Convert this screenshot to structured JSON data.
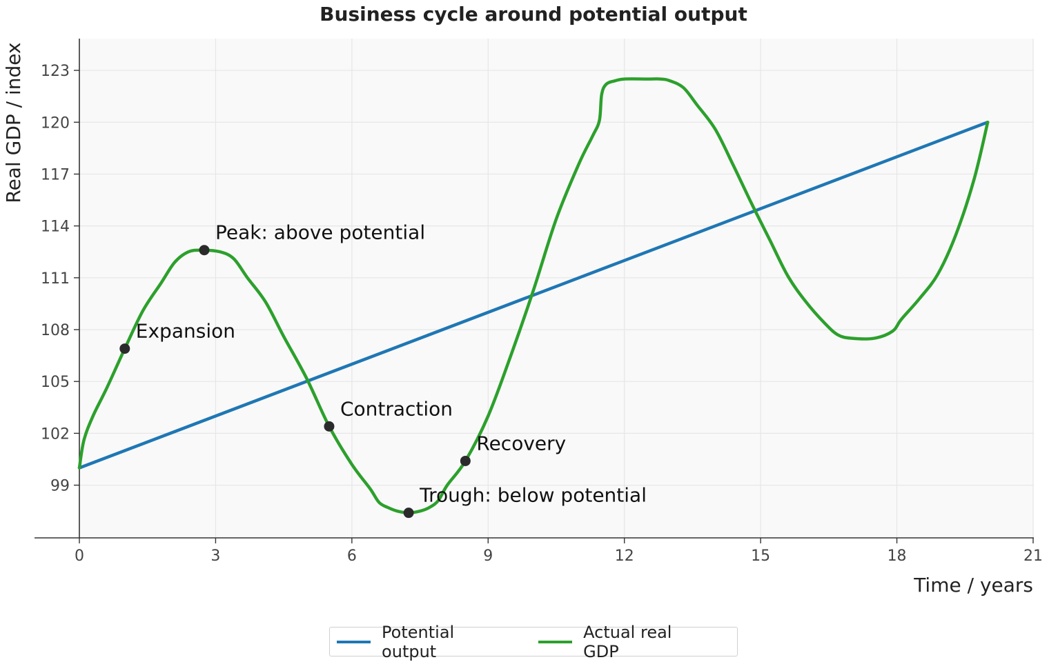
{
  "chart_data": {
    "type": "line",
    "title": "Business cycle around potential output",
    "xlabel": "Time / years",
    "ylabel": "Real GDP / index",
    "xlim": [
      -2.5,
      21
    ],
    "ylim": [
      96.2,
      123.8
    ],
    "xticks": [
      0,
      3,
      6,
      9,
      12,
      15,
      18,
      21
    ],
    "yticks": [
      99,
      102,
      105,
      108,
      111,
      114,
      117,
      120,
      123
    ],
    "grid": true,
    "legend_position": "bottom-center",
    "series": [
      {
        "name": "Potential output",
        "color": "#1f77b4",
        "x": [
          0,
          20
        ],
        "y": [
          100,
          120
        ]
      },
      {
        "name": "Actual real GDP",
        "color": "#2ca02c",
        "x": [
          0,
          0.1,
          0.3,
          0.6,
          1.0,
          1.4,
          1.8,
          2.1,
          2.4,
          2.7,
          3.1,
          3.4,
          3.7,
          4.1,
          4.5,
          5.0,
          5.5,
          6.0,
          6.4,
          6.6,
          6.8,
          7.0,
          7.25,
          7.5,
          7.7,
          7.9,
          8.1,
          8.5,
          9.0,
          9.5,
          10.0,
          10.5,
          11.0,
          11.3,
          11.45,
          11.5,
          11.6,
          11.8,
          12.0,
          12.5,
          12.8,
          13.0,
          13.3,
          13.6,
          14.0,
          14.4,
          14.8,
          15.2,
          15.6,
          16.0,
          16.4,
          16.7,
          17.0,
          17.5,
          17.9,
          18.1,
          18.5,
          18.9,
          19.3,
          19.7,
          20.0
        ],
        "y": [
          100.0,
          101.6,
          103.0,
          104.6,
          106.9,
          109.1,
          110.7,
          111.9,
          112.5,
          112.6,
          112.5,
          112.1,
          111.0,
          109.6,
          107.6,
          105.2,
          102.4,
          100.2,
          98.8,
          98.0,
          97.7,
          97.5,
          97.4,
          97.5,
          97.7,
          98.1,
          99.0,
          100.4,
          103.0,
          106.5,
          110.3,
          114.4,
          117.6,
          119.2,
          120.1,
          121.6,
          122.2,
          122.4,
          122.5,
          122.5,
          122.5,
          122.4,
          122.0,
          121.0,
          119.6,
          117.5,
          115.3,
          113.2,
          111.1,
          109.6,
          108.4,
          107.7,
          107.5,
          107.5,
          107.9,
          108.6,
          109.8,
          111.2,
          113.5,
          116.7,
          120.0
        ]
      }
    ],
    "annotations": [
      {
        "label": "Expansion",
        "x": 1.0,
        "y": 106.9
      },
      {
        "label": "Peak: above potential",
        "x": 2.75,
        "y": 112.6
      },
      {
        "label": "Contraction",
        "x": 5.5,
        "y": 102.4
      },
      {
        "label": "Trough: below potential",
        "x": 7.25,
        "y": 97.4
      },
      {
        "label": "Recovery",
        "x": 8.5,
        "y": 100.4
      }
    ]
  }
}
